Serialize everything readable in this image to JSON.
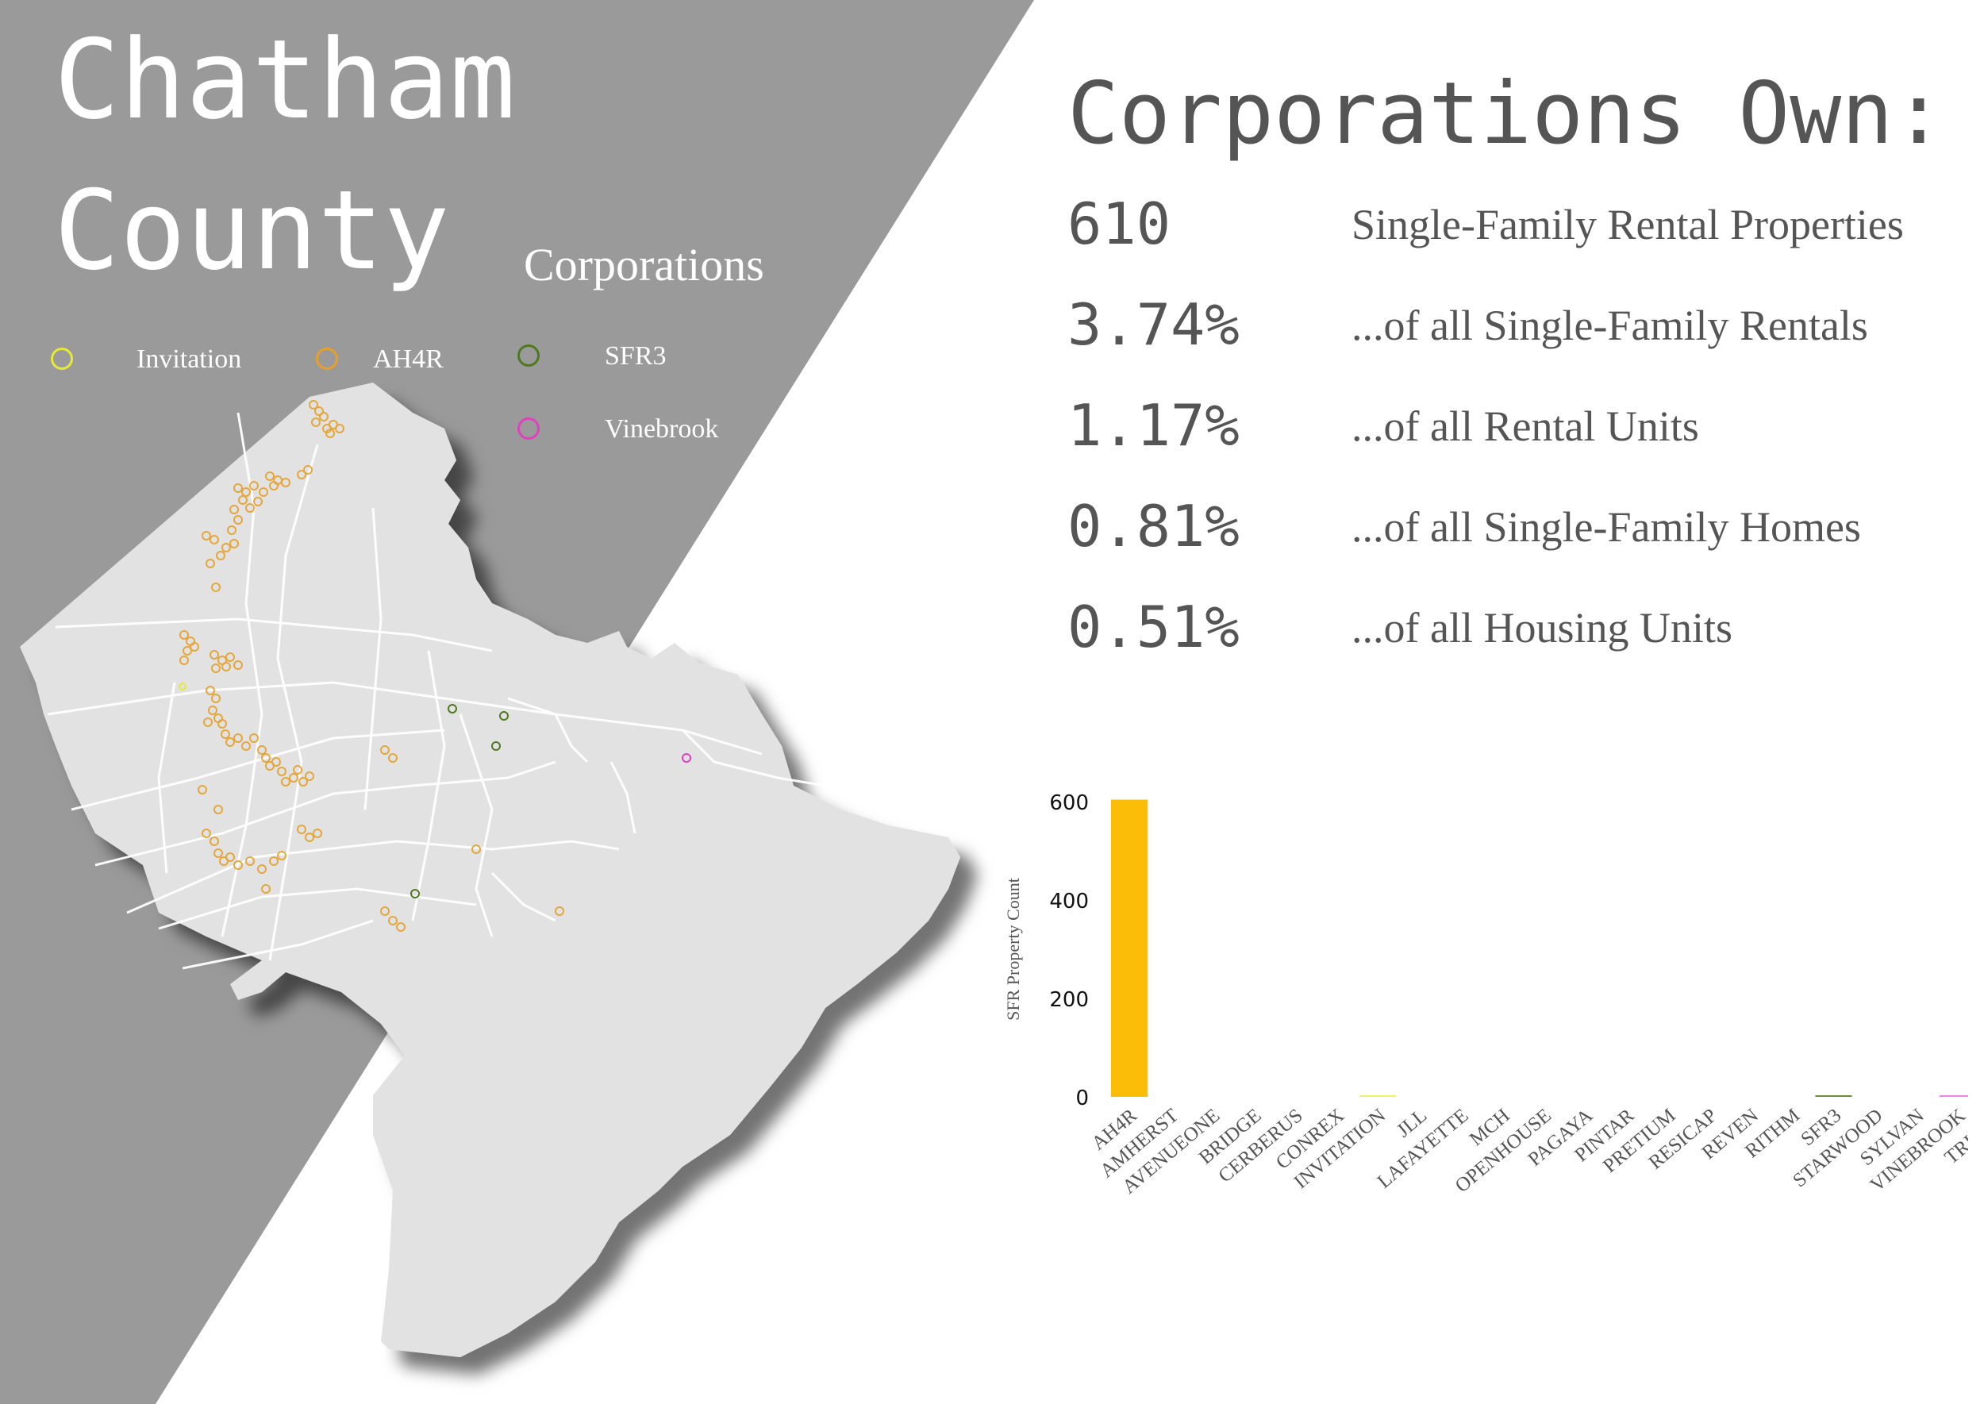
{
  "header": {
    "title_line1": "Chatham",
    "title_line2": "County",
    "subtitle": "Corporations"
  },
  "legend": [
    {
      "label": "Invitation",
      "color": "#e8e83a",
      "icon": "circle-outline-icon"
    },
    {
      "label": "AH4R",
      "color": "#e6a02a",
      "icon": "circle-outline-icon"
    },
    {
      "label": "SFR3",
      "color": "#4e7a1e",
      "icon": "circle-outline-icon"
    },
    {
      "label": "Vinebrook",
      "color": "#e040c0",
      "icon": "circle-outline-icon"
    }
  ],
  "stats": {
    "heading": "Corporations Own:",
    "rows": [
      {
        "value": "610",
        "label": "Single-Family Rental Properties"
      },
      {
        "value": "3.74%",
        "label": "...of all Single-Family Rentals"
      },
      {
        "value": "1.17%",
        "label": "...of all Rental Units"
      },
      {
        "value": "0.81%",
        "label": "...of all Single-Family Homes"
      },
      {
        "value": "0.51%",
        "label": "...of all Housing Units"
      }
    ]
  },
  "colors": {
    "panel": "#9a9a9a",
    "map_land": "#e2e2e2",
    "stat_text": "#555555",
    "ah4r": "#e6a02a",
    "ah4r_bar": "#fbbd08"
  },
  "chart_data": {
    "type": "bar",
    "title": "",
    "xlabel": "",
    "ylabel": "SFR Property Count",
    "ylim": [
      0,
      600
    ],
    "yticks": [
      "0",
      "200",
      "400",
      "600"
    ],
    "categories": [
      "AH4R",
      "AMHERST",
      "AVENUEONE",
      "BRIDGE",
      "CERBERUS",
      "CONREX",
      "INVITATION",
      "JLL",
      "LAFAYETTE",
      "MCH",
      "OPENHOUSE",
      "PAGAYA",
      "PINTAR",
      "PRETIUM",
      "RESICAP",
      "REVEN",
      "RITHM",
      "SFR3",
      "STARWOOD",
      "SYLVAN",
      "VINEBROOK",
      "TRICON"
    ],
    "values": [
      604,
      0,
      0,
      0,
      0,
      0,
      2,
      0,
      0,
      0,
      0,
      0,
      0,
      0,
      0,
      0,
      0,
      3,
      0,
      0,
      1,
      0
    ],
    "bar_colors": [
      "#fbbd08",
      "#ffffff",
      "#ffffff",
      "#ffffff",
      "#ffffff",
      "#ffffff",
      "#f2f26a",
      "#ffffff",
      "#ffffff",
      "#ffffff",
      "#ffffff",
      "#ffffff",
      "#ffffff",
      "#ffffff",
      "#ffffff",
      "#ffffff",
      "#ffffff",
      "#6b8e3a",
      "#ffffff",
      "#ffffff",
      "#ee82ee",
      "#ffffff"
    ]
  }
}
